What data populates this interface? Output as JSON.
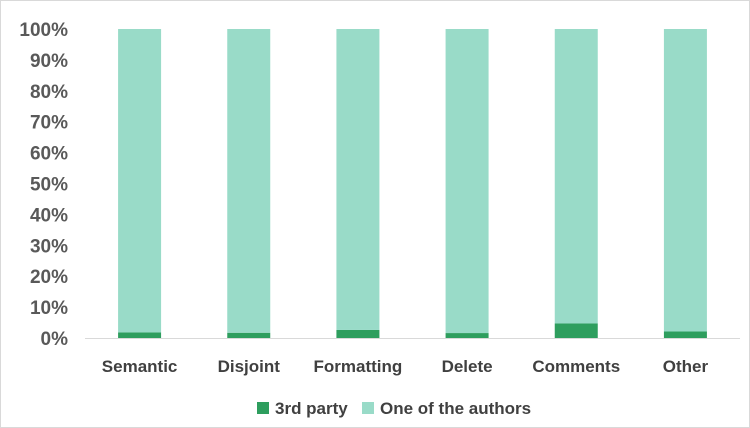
{
  "chart_data": {
    "type": "bar",
    "stacked": true,
    "percent": true,
    "title": "",
    "xlabel": "",
    "ylabel": "",
    "categories": [
      "Semantic",
      "Disjoint",
      "Formatting",
      "Delete",
      "Comments",
      "Other"
    ],
    "series": [
      {
        "name": "3rd party",
        "color": "#2e9e5e",
        "values": [
          1.8,
          1.7,
          2.6,
          1.6,
          4.7,
          2.1
        ]
      },
      {
        "name": "One of the authors",
        "color": "#99dbc8",
        "values": [
          98.2,
          98.3,
          97.4,
          98.4,
          95.3,
          97.9
        ]
      }
    ],
    "ylim": [
      0,
      100
    ],
    "yticks": [
      "0%",
      "10%",
      "20%",
      "30%",
      "40%",
      "50%",
      "60%",
      "70%",
      "80%",
      "90%",
      "100%"
    ],
    "grid": false,
    "legend": "bottom"
  }
}
